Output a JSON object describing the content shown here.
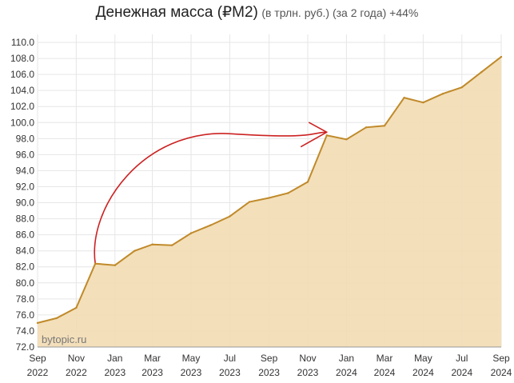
{
  "chart_data": {
    "type": "area",
    "title": "Денежная масса (₽M2)",
    "subtitle": "(в трлн. руб.) (за 2 года) +44%",
    "watermark": "bytopic.ru",
    "ylim": [
      72.0,
      111.0
    ],
    "y_ticks": [
      "72.0",
      "74.0",
      "76.0",
      "78.0",
      "80.0",
      "82.0",
      "84.0",
      "86.0",
      "88.0",
      "90.0",
      "92.0",
      "94.0",
      "96.0",
      "98.0",
      "100.0",
      "102.0",
      "104.0",
      "106.0",
      "108.0",
      "110.0"
    ],
    "x_ticks": [
      {
        "month": "Sep",
        "year": "2022",
        "date": "2022-09-01"
      },
      {
        "month": "Nov",
        "year": "2022",
        "date": "2022-11-01"
      },
      {
        "month": "Jan",
        "year": "2023",
        "date": "2023-01-01"
      },
      {
        "month": "Mar",
        "year": "2023",
        "date": "2023-03-01"
      },
      {
        "month": "May",
        "year": "2023",
        "date": "2023-05-01"
      },
      {
        "month": "Jul",
        "year": "2023",
        "date": "2023-07-01"
      },
      {
        "month": "Sep",
        "year": "2023",
        "date": "2023-09-01"
      },
      {
        "month": "Nov",
        "year": "2023",
        "date": "2023-11-01"
      },
      {
        "month": "Jan",
        "year": "2024",
        "date": "2024-01-01"
      },
      {
        "month": "Mar",
        "year": "2024",
        "date": "2024-03-01"
      },
      {
        "month": "May",
        "year": "2024",
        "date": "2024-05-01"
      },
      {
        "month": "Jul",
        "year": "2024",
        "date": "2024-07-01"
      },
      {
        "month": "Sep",
        "year": "2024",
        "date": "2024-09-01"
      }
    ],
    "series": [
      {
        "points": [
          {
            "x": "2022-09-01",
            "y": 75.0
          },
          {
            "x": "2022-10-01",
            "y": 75.6
          },
          {
            "x": "2022-11-01",
            "y": 76.9
          },
          {
            "x": "2022-12-01",
            "y": 82.4
          },
          {
            "x": "2023-01-01",
            "y": 82.2
          },
          {
            "x": "2023-02-01",
            "y": 84.0
          },
          {
            "x": "2023-03-01",
            "y": 84.8
          },
          {
            "x": "2023-04-01",
            "y": 84.7
          },
          {
            "x": "2023-05-01",
            "y": 86.2
          },
          {
            "x": "2023-06-01",
            "y": 87.2
          },
          {
            "x": "2023-07-01",
            "y": 88.3
          },
          {
            "x": "2023-08-01",
            "y": 90.1
          },
          {
            "x": "2023-09-01",
            "y": 90.6
          },
          {
            "x": "2023-10-01",
            "y": 91.2
          },
          {
            "x": "2023-11-01",
            "y": 92.6
          },
          {
            "x": "2023-12-01",
            "y": 98.4
          },
          {
            "x": "2024-01-01",
            "y": 97.9
          },
          {
            "x": "2024-02-01",
            "y": 99.4
          },
          {
            "x": "2024-03-01",
            "y": 99.6
          },
          {
            "x": "2024-04-01",
            "y": 103.1
          },
          {
            "x": "2024-05-01",
            "y": 102.5
          },
          {
            "x": "2024-06-01",
            "y": 103.6
          },
          {
            "x": "2024-07-01",
            "y": 104.4
          },
          {
            "x": "2024-08-01",
            "y": 106.3
          },
          {
            "x": "2024-09-01",
            "y": 108.2
          }
        ]
      }
    ],
    "annotation": {
      "type": "hand-drawn-arrow",
      "color": "#cc2222",
      "from": {
        "x": "2022-12-01",
        "y": 82.4
      },
      "to": {
        "x": "2023-12-01",
        "y": 98.8
      }
    },
    "grid": true,
    "colors": {
      "line": "#c08a2a",
      "fill": "#f2dcb3",
      "grid": "#e6e6e6",
      "arrow": "#cc2222"
    }
  }
}
